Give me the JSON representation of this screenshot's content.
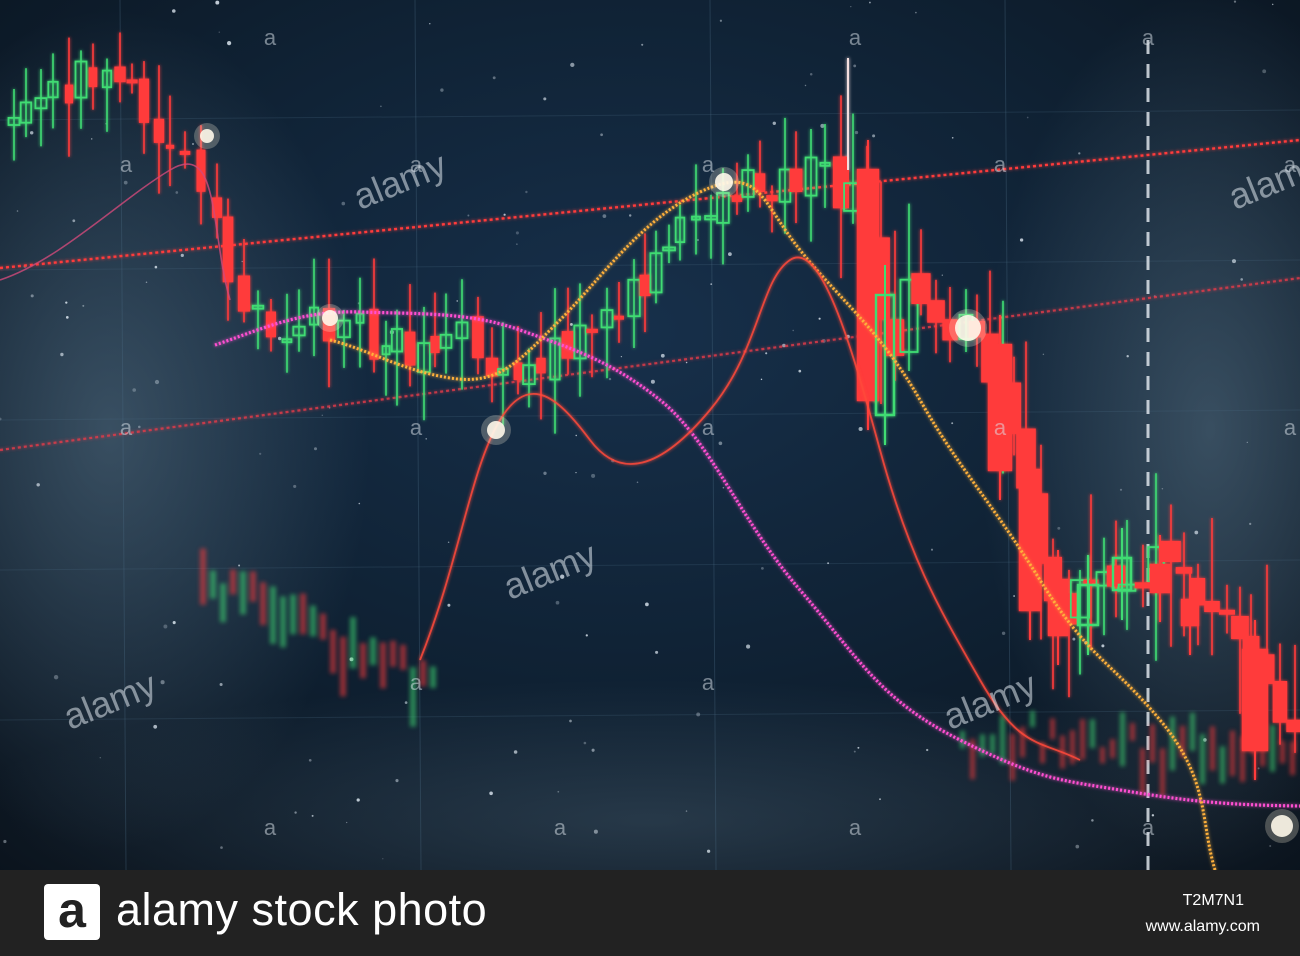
{
  "photo": {
    "subject": "stock-market-candlestick-photo",
    "colors": {
      "background": "#0b1622",
      "bull": "#3fdc73",
      "bear": "#ff3b3b",
      "ma_orange": "#ffb13b",
      "ma_magenta": "#ff4fd2",
      "ma_red": "#ff4a3a",
      "trendline": "#ff3a3a",
      "grid": "#4a6a82"
    },
    "watermark": {
      "mark": "a",
      "word": "alamy"
    }
  },
  "footer": {
    "logo_letter": "a",
    "brand_text": "alamy stock photo",
    "image_id": "T2M7N1",
    "site_url": "www.alamy.com"
  }
}
